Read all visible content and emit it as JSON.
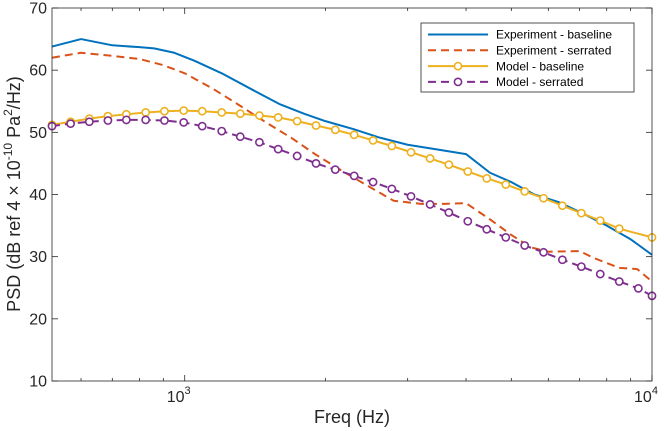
{
  "chart_data": {
    "type": "line",
    "x_scale": "log",
    "xlim": [
      520,
      10000
    ],
    "ylim": [
      10,
      70
    ],
    "xlabel": "Freq (Hz)",
    "ylabel": {
      "prefix": "PSD (dB ref 4 × 10",
      "exp1": "-10",
      "mid": " Pa",
      "exp2": "2",
      "suffix": "/Hz)"
    },
    "x_ticks": [
      {
        "value": 1000,
        "base": "10",
        "exp": "3"
      },
      {
        "value": 10000,
        "base": "10",
        "exp": "4"
      }
    ],
    "y_ticks": [
      10,
      20,
      30,
      40,
      50,
      60,
      70
    ],
    "legend_position": "top-right",
    "series": [
      {
        "name": "Experiment - baseline",
        "color": "#0072BD",
        "line_style": "solid",
        "marker": "none",
        "points": [
          [
            520,
            63.8
          ],
          [
            600,
            65.0
          ],
          [
            700,
            64.0
          ],
          [
            800,
            63.7
          ],
          [
            860,
            63.5
          ],
          [
            950,
            62.8
          ],
          [
            1050,
            61.5
          ],
          [
            1200,
            59.5
          ],
          [
            1400,
            56.8
          ],
          [
            1600,
            54.5
          ],
          [
            1800,
            53.0
          ],
          [
            2000,
            51.8
          ],
          [
            2300,
            50.5
          ],
          [
            2600,
            49.2
          ],
          [
            3000,
            48.0
          ],
          [
            3500,
            47.2
          ],
          [
            4000,
            46.5
          ],
          [
            4500,
            43.5
          ],
          [
            5000,
            42.0
          ],
          [
            5600,
            40.0
          ],
          [
            6300,
            38.8
          ],
          [
            7000,
            37.2
          ],
          [
            8000,
            35.0
          ],
          [
            9000,
            32.8
          ],
          [
            10000,
            30.3
          ]
        ]
      },
      {
        "name": "Experiment - serrated",
        "color": "#D95319",
        "line_style": "dashed",
        "marker": "none",
        "points": [
          [
            520,
            62.0
          ],
          [
            600,
            62.8
          ],
          [
            700,
            62.3
          ],
          [
            800,
            61.8
          ],
          [
            900,
            60.8
          ],
          [
            1000,
            59.5
          ],
          [
            1150,
            57.0
          ],
          [
            1300,
            54.5
          ],
          [
            1500,
            51.5
          ],
          [
            1700,
            49.0
          ],
          [
            1900,
            46.5
          ],
          [
            2150,
            44.0
          ],
          [
            2450,
            41.5
          ],
          [
            2800,
            39.0
          ],
          [
            3200,
            38.5
          ],
          [
            3600,
            38.5
          ],
          [
            4000,
            38.6
          ],
          [
            4500,
            36.0
          ],
          [
            5000,
            33.5
          ],
          [
            5500,
            31.5
          ],
          [
            6000,
            30.8
          ],
          [
            7000,
            30.9
          ],
          [
            7500,
            29.8
          ],
          [
            8500,
            28.2
          ],
          [
            9300,
            28.0
          ],
          [
            10000,
            26.0
          ]
        ]
      },
      {
        "name": "Model - baseline",
        "color": "#EDB120",
        "line_style": "solid",
        "marker": "circle",
        "points": [
          [
            520,
            51.2
          ],
          [
            570,
            51.7
          ],
          [
            625,
            52.2
          ],
          [
            685,
            52.6
          ],
          [
            750,
            52.9
          ],
          [
            825,
            53.2
          ],
          [
            905,
            53.4
          ],
          [
            995,
            53.5
          ],
          [
            1090,
            53.4
          ],
          [
            1200,
            53.2
          ],
          [
            1315,
            53.0
          ],
          [
            1445,
            52.7
          ],
          [
            1585,
            52.4
          ],
          [
            1740,
            51.8
          ],
          [
            1910,
            51.1
          ],
          [
            2100,
            50.4
          ],
          [
            2305,
            49.6
          ],
          [
            2530,
            48.7
          ],
          [
            2775,
            47.8
          ],
          [
            3050,
            46.8
          ],
          [
            3350,
            45.8
          ],
          [
            3675,
            44.8
          ],
          [
            4035,
            43.7
          ],
          [
            4430,
            42.6
          ],
          [
            4865,
            41.6
          ],
          [
            5340,
            40.5
          ],
          [
            5860,
            39.4
          ],
          [
            6430,
            38.2
          ],
          [
            7060,
            37.0
          ],
          [
            7750,
            35.8
          ],
          [
            8510,
            34.5
          ],
          [
            10000,
            33.1
          ]
        ]
      },
      {
        "name": "Model - serrated",
        "color": "#7E2F8E",
        "line_style": "dashed",
        "marker": "circle",
        "points": [
          [
            520,
            51.0
          ],
          [
            570,
            51.4
          ],
          [
            625,
            51.7
          ],
          [
            685,
            51.9
          ],
          [
            750,
            52.0
          ],
          [
            825,
            52.0
          ],
          [
            905,
            51.9
          ],
          [
            995,
            51.6
          ],
          [
            1090,
            51.0
          ],
          [
            1200,
            50.2
          ],
          [
            1315,
            49.3
          ],
          [
            1445,
            48.4
          ],
          [
            1585,
            47.3
          ],
          [
            1740,
            46.2
          ],
          [
            1910,
            45.0
          ],
          [
            2100,
            44.0
          ],
          [
            2305,
            43.0
          ],
          [
            2530,
            42.0
          ],
          [
            2775,
            40.9
          ],
          [
            3050,
            39.7
          ],
          [
            3350,
            38.4
          ],
          [
            3675,
            37.1
          ],
          [
            4035,
            35.7
          ],
          [
            4430,
            34.4
          ],
          [
            4865,
            33.1
          ],
          [
            5340,
            31.8
          ],
          [
            5860,
            30.7
          ],
          [
            6430,
            29.5
          ],
          [
            7060,
            28.4
          ],
          [
            7750,
            27.2
          ],
          [
            8510,
            26.0
          ],
          [
            9350,
            24.9
          ],
          [
            10000,
            23.7
          ]
        ]
      }
    ]
  }
}
